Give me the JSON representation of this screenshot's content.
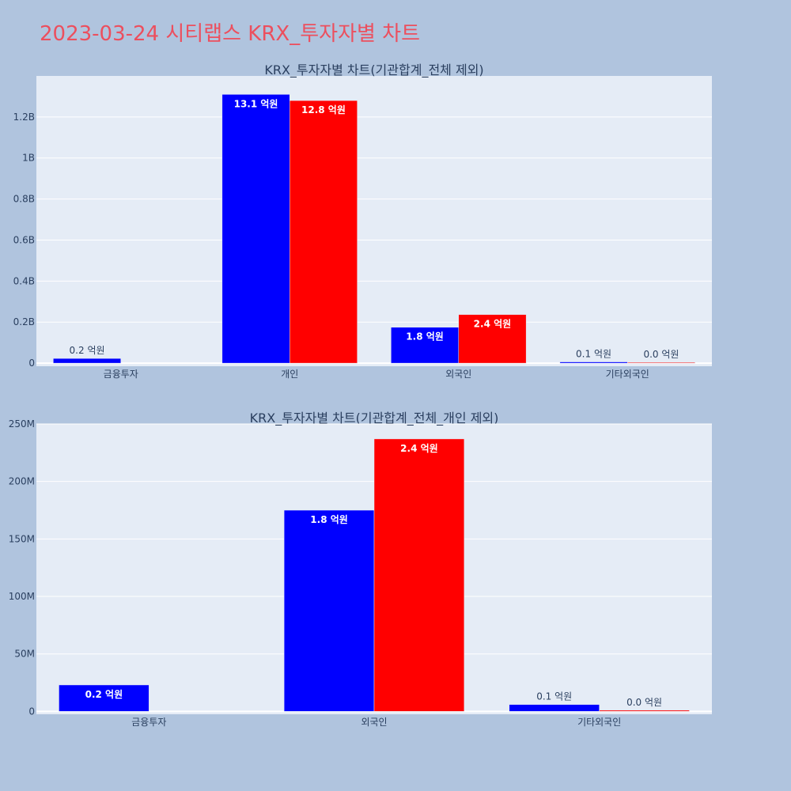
{
  "page": {
    "title": "2023-03-24 시티랩스 KRX_투자자별 차트"
  },
  "colors": {
    "background": "#b0c4de",
    "plot_bg": "#e5ecf6",
    "grid": "#ffffff",
    "title": "#ec4f5e",
    "text": "#2a3f5f",
    "series_a": "#0000ff",
    "series_b": "#ff0000"
  },
  "chart_data": [
    {
      "type": "bar",
      "title": "KRX_투자자별 차트(기관합계_전체 제외)",
      "categories": [
        "금융투자",
        "개인",
        "외국인",
        "기타외국인"
      ],
      "series": [
        {
          "color": "#0000ff",
          "values": [
            23000000,
            1310000000,
            175000000,
            6000000
          ],
          "labels": [
            "0.2 억원",
            "13.1 억원",
            "1.8 억원",
            "0.1 억원"
          ]
        },
        {
          "color": "#ff0000",
          "values": [
            0,
            1280000000,
            237000000,
            1000000
          ],
          "labels": [
            "",
            "12.8 억원",
            "2.4 억원",
            "0.0 억원"
          ]
        }
      ],
      "ylim": [
        -15000000,
        1400000000
      ],
      "yticks": [
        0,
        200000000,
        400000000,
        600000000,
        800000000,
        1000000000,
        1200000000
      ],
      "ytick_labels": [
        "0",
        "0.2B",
        "0.4B",
        "0.6B",
        "0.8B",
        "1B",
        "1.2B"
      ],
      "grid": true,
      "legend": "none"
    },
    {
      "type": "bar",
      "title": "KRX_투자자별 차트(기관합계_전체_개인 제외)",
      "categories": [
        "금융투자",
        "외국인",
        "기타외국인"
      ],
      "series": [
        {
          "color": "#0000ff",
          "values": [
            23000000,
            175000000,
            6000000
          ],
          "labels": [
            "0.2 억원",
            "1.8 억원",
            "0.1 억원"
          ]
        },
        {
          "color": "#ff0000",
          "values": [
            0,
            237000000,
            1000000
          ],
          "labels": [
            "",
            "2.4 억원",
            "0.0 억원"
          ]
        }
      ],
      "ylim": [
        -2500000,
        250000000
      ],
      "yticks": [
        0,
        50000000,
        100000000,
        150000000,
        200000000,
        250000000
      ],
      "ytick_labels": [
        "0",
        "50M",
        "100M",
        "150M",
        "200M",
        "250M"
      ],
      "grid": true,
      "legend": "none"
    }
  ]
}
